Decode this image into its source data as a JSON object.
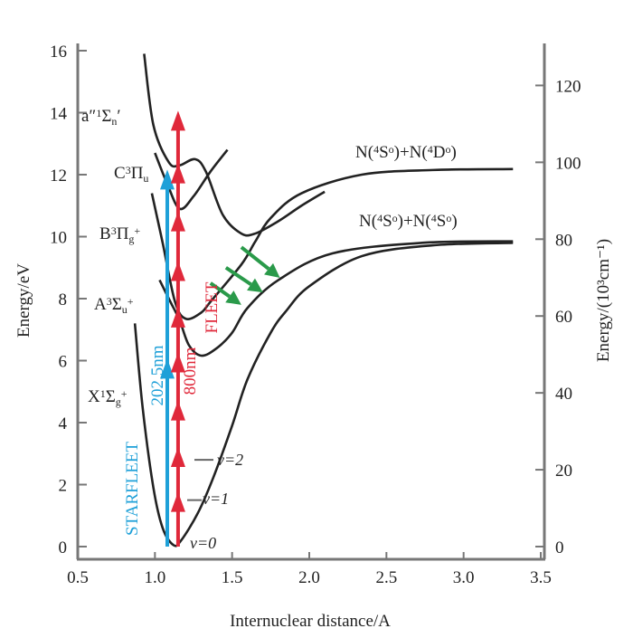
{
  "chart_data": {
    "type": "line",
    "xlabel": "Internuclear distance/A",
    "ylabel": "Energy/eV",
    "ylabel_right": "Energy/(10³cm⁻¹)",
    "xlim": [
      0.5,
      3.5
    ],
    "ylim": [
      0,
      16
    ],
    "ylim_right": [
      0,
      129
    ],
    "x_ticks": [
      "0.5",
      "1.0",
      "1.5",
      "2.0",
      "2.5",
      "3.0",
      "3.5"
    ],
    "y_ticks": [
      "0",
      "2",
      "4",
      "6",
      "8",
      "10",
      "12",
      "14",
      "16"
    ],
    "y_ticks_right": [
      "0",
      "20",
      "40",
      "60",
      "80",
      "100",
      "120"
    ],
    "grid": false,
    "curve_color": "#222222",
    "curves": [
      {
        "state": "X",
        "label": [
          [
            "t",
            "X"
          ],
          [
            "sup",
            "1"
          ],
          [
            "t",
            "Σ"
          ],
          [
            "sub",
            "g"
          ],
          [
            "sup",
            "+"
          ]
        ],
        "points": [
          [
            0.87,
            7.2
          ],
          [
            0.92,
            4.5
          ],
          [
            0.99,
            1.9
          ],
          [
            1.05,
            0.6
          ],
          [
            1.12,
            0.05
          ],
          [
            1.17,
            0.2
          ],
          [
            1.28,
            1.1
          ],
          [
            1.38,
            2.25
          ],
          [
            1.5,
            3.9
          ],
          [
            1.6,
            5.4
          ],
          [
            1.75,
            6.9
          ],
          [
            1.85,
            7.6
          ],
          [
            2.0,
            8.4
          ],
          [
            2.34,
            9.37
          ],
          [
            2.8,
            9.72
          ],
          [
            3.32,
            9.8
          ]
        ]
      },
      {
        "state": "A",
        "label": [
          [
            "t",
            "A"
          ],
          [
            "sup",
            "3"
          ],
          [
            "t",
            "Σ"
          ],
          [
            "sub",
            "u"
          ],
          [
            "sup",
            "+"
          ]
        ],
        "points": [
          [
            1.03,
            8.6
          ],
          [
            1.1,
            7.9
          ],
          [
            1.16,
            7.3
          ],
          [
            1.22,
            6.5
          ],
          [
            1.3,
            6.16
          ],
          [
            1.4,
            6.4
          ],
          [
            1.5,
            6.9
          ],
          [
            1.6,
            7.7
          ],
          [
            1.8,
            8.6
          ],
          [
            2.15,
            9.46
          ],
          [
            2.73,
            9.8
          ],
          [
            3.32,
            9.85
          ]
        ]
      },
      {
        "state": "B",
        "label": [
          [
            "t",
            "B"
          ],
          [
            "sup",
            "3"
          ],
          [
            "t",
            "Π"
          ],
          [
            "sub",
            "g"
          ],
          [
            "sup",
            "+"
          ]
        ],
        "points": [
          [
            0.98,
            11.4
          ],
          [
            1.05,
            9.8
          ],
          [
            1.13,
            7.9
          ],
          [
            1.2,
            7.35
          ],
          [
            1.3,
            7.55
          ],
          [
            1.36,
            7.9
          ],
          [
            1.56,
            9.1
          ],
          [
            1.65,
            9.84
          ],
          [
            1.75,
            10.6
          ],
          [
            1.95,
            11.4
          ],
          [
            2.34,
            12.0
          ],
          [
            2.8,
            12.15
          ],
          [
            3.32,
            12.18
          ]
        ]
      },
      {
        "state": "C",
        "label": [
          [
            "t",
            "C"
          ],
          [
            "sup",
            "3"
          ],
          [
            "t",
            "Π"
          ],
          [
            "sub",
            "u"
          ]
        ],
        "points": [
          [
            1.0,
            12.7
          ],
          [
            1.08,
            11.7
          ],
          [
            1.16,
            10.9
          ],
          [
            1.25,
            11.3
          ],
          [
            1.36,
            12.1
          ],
          [
            1.47,
            12.8
          ]
        ]
      },
      {
        "state": "a''",
        "label": [
          [
            "t",
            "a″"
          ],
          [
            "sup",
            "1"
          ],
          [
            "t",
            "Σ"
          ],
          [
            "sub",
            "n"
          ],
          [
            "t",
            "′"
          ]
        ],
        "points": [
          [
            0.93,
            15.9
          ],
          [
            0.99,
            13.6
          ],
          [
            1.09,
            12.4
          ],
          [
            1.16,
            12.3
          ],
          [
            1.26,
            12.5
          ],
          [
            1.33,
            12.1
          ],
          [
            1.44,
            10.7
          ],
          [
            1.56,
            10.1
          ],
          [
            1.65,
            10.1
          ],
          [
            1.8,
            10.5
          ],
          [
            1.95,
            11.0
          ],
          [
            2.1,
            11.45
          ]
        ]
      }
    ],
    "asymptotes": [
      {
        "label": [
          [
            "t",
            "N("
          ],
          [
            "sup",
            "4"
          ],
          [
            "t",
            "S"
          ],
          [
            "sup",
            "o"
          ],
          [
            "t",
            ")+N("
          ],
          [
            "sup",
            "4"
          ],
          [
            "t",
            "D"
          ],
          [
            "sup",
            "o"
          ],
          [
            "t",
            ")"
          ]
        ],
        "energy": 12.2
      },
      {
        "label": [
          [
            "t",
            "N("
          ],
          [
            "sup",
            "4"
          ],
          [
            "t",
            "S"
          ],
          [
            "sup",
            "o"
          ],
          [
            "t",
            ")+N("
          ],
          [
            "sup",
            "4"
          ],
          [
            "t",
            "S"
          ],
          [
            "sup",
            "o"
          ],
          [
            "t",
            ")"
          ]
        ],
        "energy": 9.8
      }
    ],
    "vibrational_levels": [
      {
        "label": "v=0",
        "energy": 0.05
      },
      {
        "label": "v=1",
        "energy": 1.5
      },
      {
        "label": "v=2",
        "energy": 2.8
      }
    ],
    "beams": [
      {
        "name": "STARFLEET",
        "wavelength": "202.5nm",
        "color": "#1ea0d8",
        "x": 1.08,
        "from": 0,
        "to": 11.9,
        "arrowheads": [
          5.8,
          11.9
        ]
      },
      {
        "name": "FLEET",
        "wavelength": "800nm",
        "color": "#e0283a",
        "x": 1.15,
        "from": 0,
        "to": 13.8,
        "arrowheads": [
          1.5,
          2.95,
          4.45,
          6.0,
          7.45,
          8.95,
          10.55,
          12.1,
          13.8
        ]
      }
    ],
    "transfer_arrows": {
      "color": "#2a9a4a",
      "arrows": [
        {
          "from": [
            1.36,
            8.5
          ],
          "to": [
            1.56,
            7.8
          ]
        },
        {
          "from": [
            1.46,
            9.0
          ],
          "to": [
            1.7,
            8.2
          ]
        },
        {
          "from": [
            1.56,
            9.66
          ],
          "to": [
            1.81,
            8.67
          ]
        }
      ]
    }
  }
}
